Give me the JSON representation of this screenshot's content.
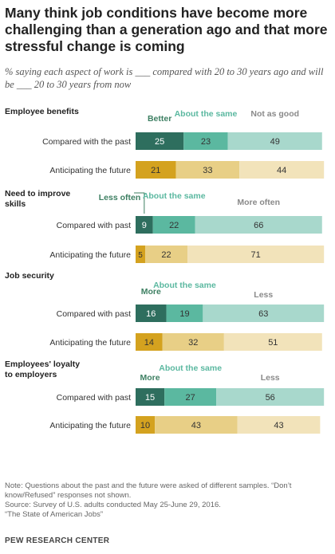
{
  "title": "Many think job conditions have become more challenging than a generation ago and that more stressful change is coming",
  "subtitle": "% saying each aspect of work is ___ compared with 20 to 30 years ago and will be ___ 20 to 30 years from now",
  "colors": {
    "past": [
      "#2e6e5e",
      "#5bb8a0",
      "#a8d8cc"
    ],
    "future": [
      "#d4a21f",
      "#e8cf86",
      "#f2e3ba"
    ],
    "header_dark": "#3d7f62",
    "header_mid": "#5bb8a0",
    "header_light": "#8a8a8a"
  },
  "chart_data": {
    "type": "stacked-bar",
    "groups": [
      {
        "title": "Employee benefits",
        "headers": [
          "Better",
          "About the same",
          "Not as good"
        ],
        "rows": [
          {
            "label": "Compared with the past",
            "values": [
              25,
              23,
              49
            ]
          },
          {
            "label": "Anticipating the future",
            "values": [
              21,
              33,
              44
            ]
          }
        ]
      },
      {
        "title": "Need to improve skills",
        "headers": [
          "Less often",
          "About the same",
          "More often"
        ],
        "rows": [
          {
            "label": "Compared with past",
            "values": [
              9,
              22,
              66
            ]
          },
          {
            "label": "Anticipating the future",
            "values": [
              5,
              22,
              71
            ]
          }
        ]
      },
      {
        "title": "Job security",
        "headers": [
          "More",
          "About the same",
          "Less"
        ],
        "rows": [
          {
            "label": "Compared with past",
            "values": [
              16,
              19,
              63
            ]
          },
          {
            "label": "Anticipating the future",
            "values": [
              14,
              32,
              51
            ]
          }
        ]
      },
      {
        "title": "Employees' loyalty to employers",
        "headers": [
          "More",
          "About the same",
          "Less"
        ],
        "rows": [
          {
            "label": "Compared with past",
            "values": [
              15,
              27,
              56
            ]
          },
          {
            "label": "Anticipating the future",
            "values": [
              10,
              43,
              43
            ]
          }
        ]
      }
    ]
  },
  "notes": {
    "note": "Note: Questions about the past and the future were asked of different samples. “Don’t know/Refused” responses not shown.",
    "source": "Source: Survey of U.S. adults conducted May 25-June 29, 2016.",
    "report": "“The State of American Jobs”"
  },
  "brand": "PEW RESEARCH CENTER"
}
